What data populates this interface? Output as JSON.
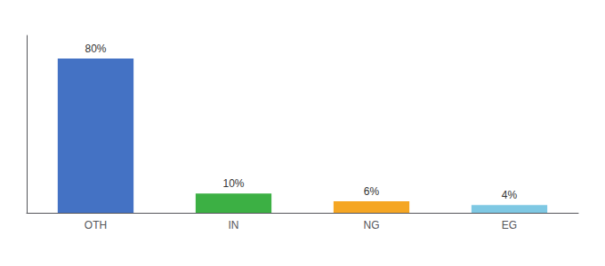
{
  "chart_data": {
    "type": "bar",
    "categories": [
      "OTH",
      "IN",
      "NG",
      "EG"
    ],
    "values": [
      80,
      10,
      6,
      4
    ],
    "value_labels": [
      "80%",
      "10%",
      "6%",
      "4%"
    ],
    "colors": [
      "#4472c4",
      "#3cb044",
      "#f5a623",
      "#7ec8e3"
    ],
    "ylim": [
      0,
      92
    ],
    "tick_labels": "x",
    "grid": false,
    "data_labels": true
  }
}
